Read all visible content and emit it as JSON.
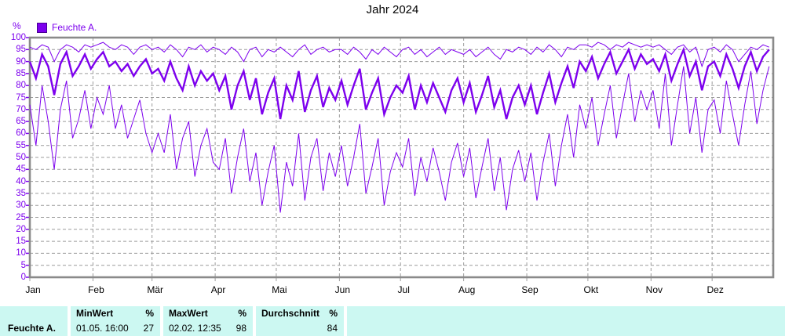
{
  "title": "Jahr 2024",
  "legend": {
    "label": "Feuchte A."
  },
  "colors": {
    "series": "#7d00ee",
    "grid": "#9c9c9c",
    "frame": "#8a8a8a",
    "table_bg": "#ccf8f2",
    "axis_text": "#7d00ee",
    "month_text": "#000000"
  },
  "y_axis": {
    "unit": "%",
    "min": 0,
    "max": 100,
    "step": 5,
    "tick_labels": [
      "0",
      "5",
      "10",
      "15",
      "20",
      "25",
      "30",
      "35",
      "40",
      "45",
      "50",
      "55",
      "60",
      "65",
      "70",
      "75",
      "80",
      "85",
      "90",
      "95",
      "100"
    ]
  },
  "x_axis": {
    "month_labels": [
      "Jan",
      "Feb",
      "Mär",
      "Apr",
      "Mai",
      "Jun",
      "Jul",
      "Aug",
      "Sep",
      "Okt",
      "Nov",
      "Dez"
    ],
    "month_start_days": [
      0,
      31,
      60,
      91,
      121,
      152,
      182,
      213,
      244,
      274,
      305,
      335
    ],
    "days_total": 365
  },
  "chart_data": {
    "type": "line",
    "title": "Jahr 2024",
    "ylabel": "%",
    "ylim": [
      0,
      100
    ],
    "x_unit": "day of year (one sample every 3 days)",
    "sample_step_days": 3,
    "grid": true,
    "legend_position": "top-left",
    "series": [
      {
        "name": "Feuchte A. daily maximum",
        "stroke_width": 1,
        "values": [
          96,
          95,
          97,
          96,
          90,
          95,
          97,
          96,
          94,
          97,
          96,
          97,
          98,
          96,
          95,
          97,
          96,
          93,
          96,
          97,
          95,
          96,
          94,
          97,
          95,
          92,
          96,
          95,
          97,
          94,
          96,
          95,
          93,
          96,
          94,
          90,
          95,
          96,
          92,
          95,
          94,
          96,
          94,
          92,
          95,
          97,
          93,
          95,
          96,
          94,
          95,
          95,
          93,
          96,
          94,
          91,
          95,
          93,
          96,
          94,
          92,
          95,
          96,
          93,
          95,
          92,
          94,
          96,
          93,
          95,
          94,
          93,
          95,
          92,
          94,
          96,
          93,
          91,
          95,
          94,
          96,
          95,
          93,
          96,
          94,
          97,
          95,
          92,
          96,
          95,
          97,
          97,
          96,
          98,
          97,
          95,
          97,
          96,
          98,
          97,
          96,
          97,
          96,
          97,
          95,
          93,
          96,
          97,
          94,
          96,
          88,
          95,
          96,
          94,
          97,
          95,
          90,
          93,
          96,
          95,
          97,
          96
        ]
      },
      {
        "name": "Feuchte A. daily mean",
        "stroke_width": 2.4,
        "values": [
          90,
          83,
          93,
          88,
          76,
          89,
          94,
          84,
          88,
          93,
          87,
          91,
          94,
          88,
          90,
          86,
          89,
          84,
          88,
          91,
          85,
          87,
          82,
          90,
          83,
          78,
          88,
          80,
          86,
          82,
          85,
          78,
          84,
          70,
          80,
          86,
          74,
          83,
          68,
          77,
          83,
          66,
          80,
          74,
          86,
          69,
          78,
          84,
          71,
          79,
          74,
          82,
          72,
          80,
          87,
          70,
          77,
          83,
          68,
          75,
          80,
          77,
          84,
          70,
          80,
          73,
          81,
          75,
          69,
          78,
          83,
          73,
          81,
          69,
          76,
          84,
          71,
          78,
          66,
          75,
          80,
          72,
          80,
          68,
          77,
          85,
          73,
          81,
          88,
          79,
          90,
          86,
          92,
          83,
          89,
          94,
          85,
          90,
          95,
          87,
          93,
          89,
          91,
          86,
          93,
          82,
          89,
          95,
          84,
          90,
          78,
          88,
          90,
          84,
          93,
          87,
          79,
          88,
          94,
          86,
          92,
          95
        ]
      },
      {
        "name": "Feuchte A. daily minimum",
        "stroke_width": 1,
        "values": [
          72,
          55,
          80,
          65,
          45,
          70,
          82,
          58,
          66,
          78,
          62,
          75,
          68,
          80,
          62,
          72,
          58,
          66,
          74,
          60,
          52,
          60,
          52,
          68,
          45,
          58,
          65,
          42,
          55,
          62,
          48,
          45,
          58,
          35,
          50,
          62,
          40,
          52,
          30,
          44,
          55,
          27,
          48,
          38,
          60,
          32,
          50,
          58,
          36,
          52,
          42,
          55,
          38,
          50,
          64,
          35,
          46,
          58,
          30,
          44,
          52,
          46,
          58,
          34,
          50,
          40,
          54,
          44,
          32,
          48,
          56,
          42,
          54,
          33,
          46,
          58,
          36,
          50,
          28,
          45,
          53,
          40,
          52,
          32,
          48,
          60,
          38,
          55,
          68,
          50,
          72,
          62,
          75,
          55,
          68,
          80,
          58,
          72,
          85,
          65,
          78,
          70,
          78,
          62,
          85,
          55,
          72,
          88,
          60,
          75,
          52,
          70,
          74,
          60,
          82,
          68,
          55,
          72,
          86,
          64,
          78,
          88
        ]
      }
    ]
  },
  "table": {
    "row_label": "Feuchte A.",
    "stats": [
      {
        "header": "MinWert",
        "unit": "%",
        "time": "01.05. 16:00",
        "value": "27"
      },
      {
        "header": "MaxWert",
        "unit": "%",
        "time": "02.02. 12:35",
        "value": "98"
      },
      {
        "header": "Durchschnitt",
        "unit": "%",
        "time": "",
        "value": "84"
      }
    ]
  }
}
